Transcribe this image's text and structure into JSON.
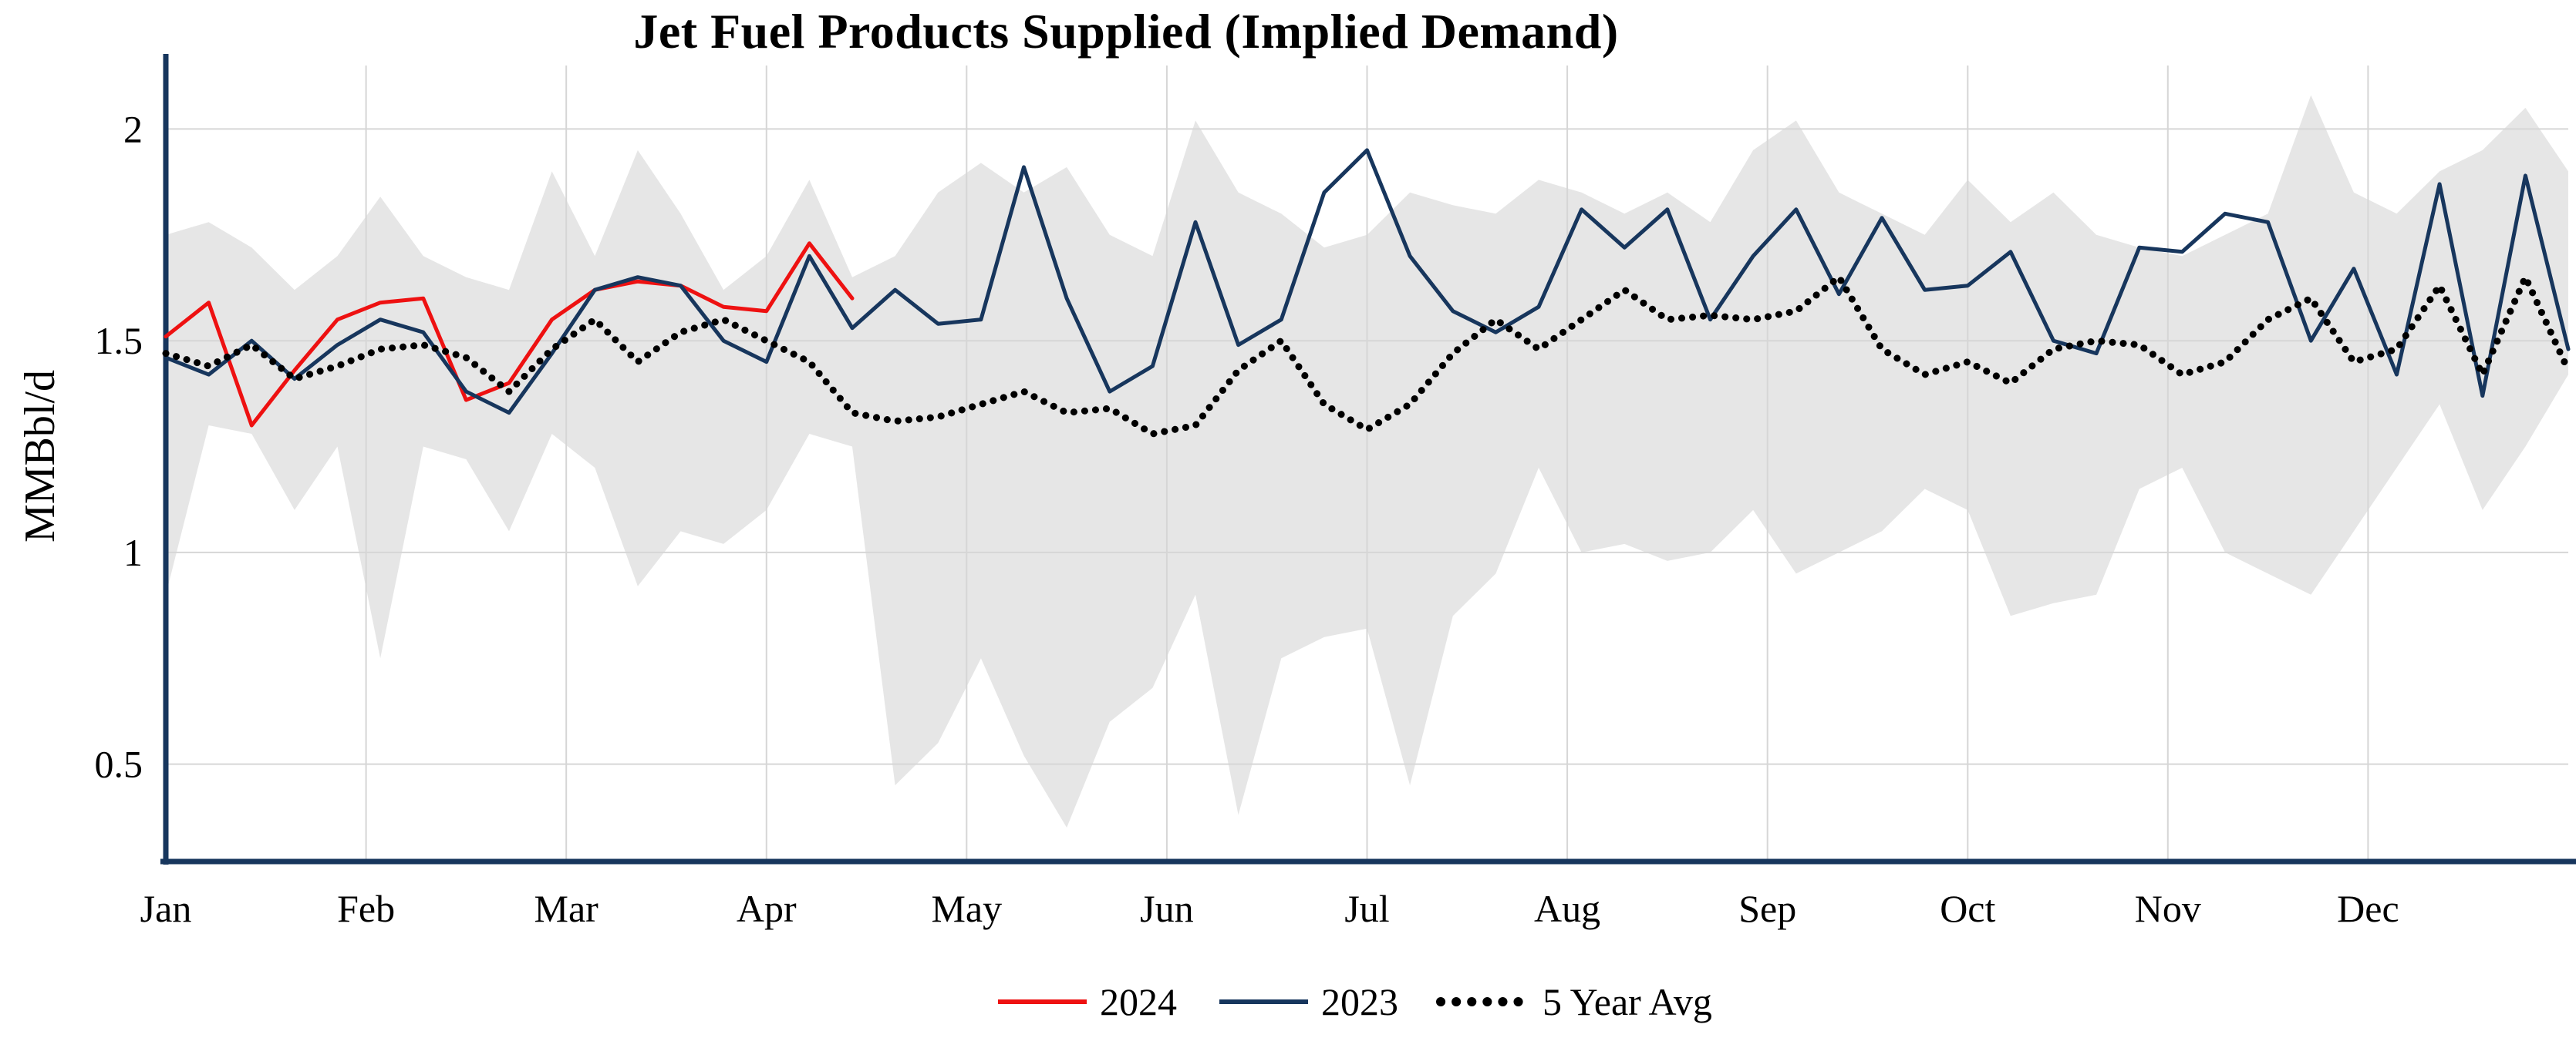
{
  "chart_data": {
    "type": "line",
    "title": "Jet Fuel Products Supplied (Implied Demand)",
    "ylabel": "MMBbl/d",
    "ylim": [
      0.27,
      2.15
    ],
    "y_ticks": [
      0.5,
      1,
      1.5,
      2
    ],
    "y_tick_labels": [
      "0.5",
      "1",
      "1.5",
      "2"
    ],
    "x_tick_labels": [
      "Jan",
      "Feb",
      "Mar",
      "Apr",
      "May",
      "Jun",
      "Jul",
      "Aug",
      "Sep",
      "Oct",
      "Nov",
      "Dec"
    ],
    "x_unit": "weekly observations, Jan through Dec",
    "grid": true,
    "legend_position": "bottom-center",
    "colors": {
      "red_2024": "#ee1111",
      "navy_2023": "#17365d",
      "avg_black": "#000000",
      "band_gray": "#dedede",
      "grid_gray": "#d6d6d6",
      "axis_navy": "#17365d"
    },
    "band": {
      "name": "5 Year Range",
      "upper": [
        1.75,
        1.78,
        1.72,
        1.62,
        1.7,
        1.84,
        1.7,
        1.65,
        1.62,
        1.9,
        1.7,
        1.95,
        1.8,
        1.62,
        1.7,
        1.88,
        1.65,
        1.7,
        1.85,
        1.92,
        1.85,
        1.91,
        1.75,
        1.7,
        2.02,
        1.85,
        1.8,
        1.72,
        1.75,
        1.85,
        1.82,
        1.8,
        1.88,
        1.85,
        1.8,
        1.85,
        1.78,
        1.95,
        2.02,
        1.85,
        1.8,
        1.75,
        1.88,
        1.78,
        1.85,
        1.75,
        1.72,
        1.7,
        1.75,
        1.8,
        2.08,
        1.85,
        1.8,
        1.9,
        1.95,
        2.05,
        1.9
      ],
      "lower": [
        0.9,
        1.3,
        1.28,
        1.1,
        1.25,
        0.75,
        1.25,
        1.22,
        1.05,
        1.28,
        1.2,
        0.92,
        1.05,
        1.02,
        1.1,
        1.28,
        1.25,
        0.45,
        0.55,
        0.75,
        0.52,
        0.35,
        0.6,
        0.68,
        0.9,
        0.38,
        0.75,
        0.8,
        0.82,
        0.45,
        0.85,
        0.95,
        1.2,
        1.0,
        1.02,
        0.98,
        1.0,
        1.1,
        0.95,
        1.0,
        1.05,
        1.15,
        1.1,
        0.85,
        0.88,
        0.9,
        1.15,
        1.2,
        1.0,
        0.95,
        0.9,
        1.05,
        1.2,
        1.35,
        1.1,
        1.25,
        1.42
      ]
    },
    "series": [
      {
        "name": "2024",
        "style": "solid",
        "color_key": "red_2024",
        "values": [
          1.51,
          1.59,
          1.3,
          1.43,
          1.55,
          1.59,
          1.6,
          1.36,
          1.4,
          1.55,
          1.62,
          1.64,
          1.63,
          1.58,
          1.57,
          1.73,
          1.6
        ]
      },
      {
        "name": "2023",
        "style": "solid",
        "color_key": "navy_2023",
        "values": [
          1.46,
          1.42,
          1.5,
          1.41,
          1.49,
          1.55,
          1.52,
          1.38,
          1.33,
          1.47,
          1.62,
          1.65,
          1.63,
          1.5,
          1.45,
          1.7,
          1.53,
          1.62,
          1.54,
          1.55,
          1.91,
          1.6,
          1.38,
          1.44,
          1.78,
          1.49,
          1.55,
          1.85,
          1.95,
          1.7,
          1.57,
          1.52,
          1.58,
          1.81,
          1.72,
          1.81,
          1.55,
          1.7,
          1.81,
          1.61,
          1.79,
          1.62,
          1.63,
          1.71,
          1.5,
          1.47,
          1.72,
          1.71,
          1.8,
          1.78,
          1.5,
          1.67,
          1.42,
          1.87,
          1.37,
          1.89,
          1.48
        ]
      },
      {
        "name": "5 Year Avg",
        "style": "dotted",
        "color_key": "avg_black",
        "values": [
          1.47,
          1.44,
          1.49,
          1.41,
          1.44,
          1.48,
          1.49,
          1.46,
          1.38,
          1.48,
          1.55,
          1.45,
          1.52,
          1.55,
          1.5,
          1.45,
          1.33,
          1.31,
          1.32,
          1.35,
          1.38,
          1.33,
          1.34,
          1.28,
          1.3,
          1.43,
          1.5,
          1.35,
          1.29,
          1.35,
          1.47,
          1.55,
          1.48,
          1.55,
          1.62,
          1.55,
          1.56,
          1.55,
          1.57,
          1.65,
          1.48,
          1.42,
          1.45,
          1.4,
          1.48,
          1.5,
          1.49,
          1.42,
          1.45,
          1.55,
          1.6,
          1.45,
          1.48,
          1.63,
          1.42,
          1.65,
          1.43
        ]
      }
    ],
    "legend": [
      {
        "label": "2024",
        "style": "solid",
        "color_key": "red_2024"
      },
      {
        "label": "2023",
        "style": "solid",
        "color_key": "navy_2023"
      },
      {
        "label": "5 Year Avg",
        "style": "dotted",
        "color_key": "avg_black"
      }
    ]
  }
}
